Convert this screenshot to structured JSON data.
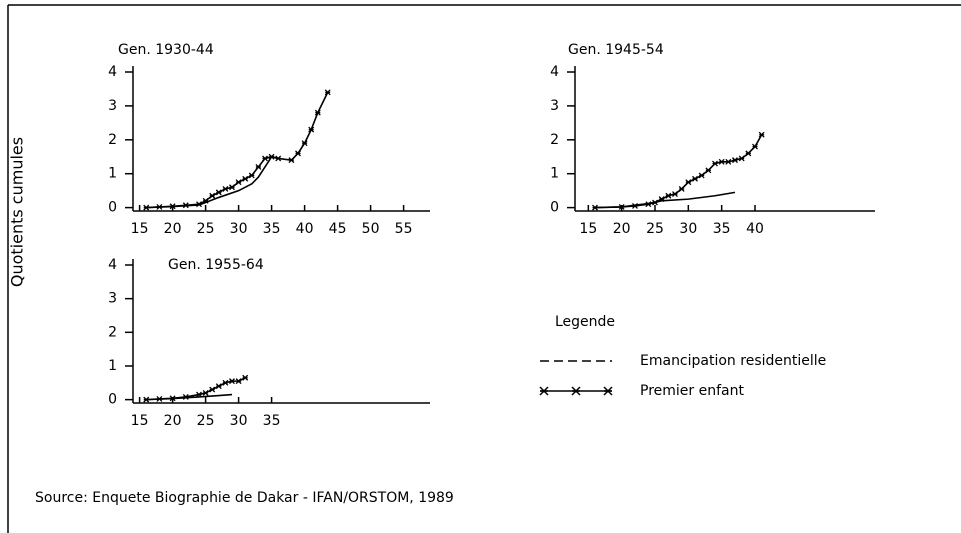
{
  "chart_data": [
    {
      "type": "line",
      "title": "Gen. 1930-44",
      "xlim": [
        14,
        59
      ],
      "ylim": [
        -0.1,
        4
      ],
      "xticks": [
        15,
        20,
        25,
        30,
        35,
        40,
        45,
        50,
        55
      ],
      "yticks": [
        0,
        1,
        2,
        3,
        4
      ],
      "series": [
        {
          "name": "Emancipation residentielle",
          "color": "#000000",
          "marker": false,
          "x": [
            16,
            20,
            24,
            25,
            27,
            30,
            32,
            33,
            34,
            35
          ],
          "values": [
            0,
            0.03,
            0.08,
            0.15,
            0.3,
            0.5,
            0.7,
            0.9,
            1.2,
            1.5
          ]
        },
        {
          "name": "Premier enfant",
          "color": "#000000",
          "marker": true,
          "x": [
            16,
            18,
            20,
            22,
            24,
            25,
            26,
            27,
            28,
            29,
            30,
            31,
            32,
            33,
            34,
            35,
            36,
            38,
            39,
            40,
            41,
            42,
            43.5
          ],
          "values": [
            0,
            0.02,
            0.04,
            0.07,
            0.1,
            0.2,
            0.35,
            0.45,
            0.55,
            0.6,
            0.75,
            0.85,
            0.95,
            1.2,
            1.45,
            1.5,
            1.45,
            1.4,
            1.6,
            1.9,
            2.3,
            2.8,
            3.4
          ]
        }
      ]
    },
    {
      "type": "line",
      "title": "Gen. 1945-54",
      "xlim": [
        13,
        58
      ],
      "ylim": [
        -0.1,
        4
      ],
      "xticks": [
        15,
        20,
        25,
        30,
        35,
        40
      ],
      "yticks": [
        0,
        1,
        2,
        3,
        4
      ],
      "series": [
        {
          "name": "Emancipation residentielle",
          "color": "#000000",
          "marker": false,
          "x": [
            16,
            20,
            24,
            26,
            30,
            34,
            37
          ],
          "values": [
            0,
            0.02,
            0.12,
            0.2,
            0.25,
            0.35,
            0.45
          ]
        },
        {
          "name": "Premier enfant",
          "color": "#000000",
          "marker": true,
          "x": [
            16,
            20,
            22,
            24,
            25,
            26,
            27,
            28,
            29,
            30,
            31,
            32,
            33,
            34,
            35,
            36,
            37,
            38,
            39,
            40,
            41
          ],
          "values": [
            0,
            0.02,
            0.05,
            0.1,
            0.15,
            0.25,
            0.35,
            0.4,
            0.55,
            0.75,
            0.85,
            0.95,
            1.1,
            1.3,
            1.35,
            1.35,
            1.4,
            1.45,
            1.6,
            1.8,
            2.15
          ]
        }
      ]
    },
    {
      "type": "line",
      "title": "Gen. 1955-64",
      "xlim": [
        14,
        59
      ],
      "ylim": [
        -0.1,
        4
      ],
      "xticks": [
        15,
        20,
        25,
        30,
        35
      ],
      "yticks": [
        0,
        1,
        2,
        3,
        4
      ],
      "series": [
        {
          "name": "Emancipation residentielle",
          "color": "#000000",
          "marker": false,
          "x": [
            16,
            20,
            24,
            27,
            29
          ],
          "values": [
            0,
            0.03,
            0.08,
            0.12,
            0.15
          ]
        },
        {
          "name": "Premier enfant",
          "color": "#000000",
          "marker": true,
          "x": [
            16,
            18,
            20,
            22,
            24,
            25,
            26,
            27,
            28,
            29,
            30,
            31
          ],
          "values": [
            0,
            0.02,
            0.04,
            0.08,
            0.15,
            0.2,
            0.3,
            0.4,
            0.5,
            0.55,
            0.55,
            0.65
          ]
        }
      ]
    }
  ],
  "y_label": "Quotients cumules",
  "legend_title": "Legende",
  "source": "Source: Enquete Biographie de Dakar - IFAN/ORSTOM, 1989"
}
